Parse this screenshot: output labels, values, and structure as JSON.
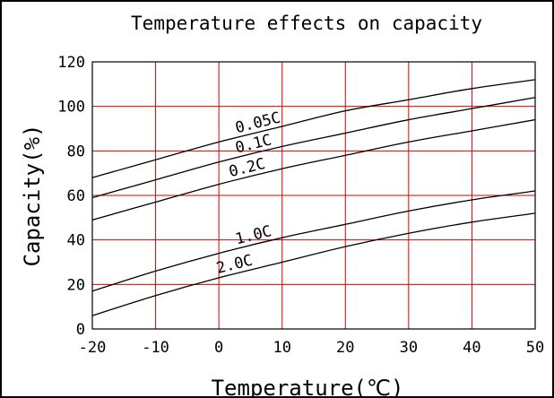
{
  "chart_data": {
    "type": "line",
    "title": "Temperature effects on capacity",
    "xlabel": "Temperature(℃)",
    "ylabel": "Capacity(%)",
    "xlim": [
      -20,
      50
    ],
    "ylim": [
      0,
      120
    ],
    "xticks": [
      -20,
      -10,
      0,
      10,
      20,
      30,
      40,
      50
    ],
    "yticks": [
      0,
      20,
      40,
      60,
      80,
      100,
      120
    ],
    "grid": true,
    "grid_color": "#dd0000",
    "line_color": "#000000",
    "series": [
      {
        "name": "0.05C",
        "x": [
          -20,
          -10,
          0,
          10,
          20,
          30,
          40,
          50
        ],
        "y": [
          68,
          76,
          84,
          91,
          98,
          103,
          108,
          112
        ]
      },
      {
        "name": "0.1C",
        "x": [
          -20,
          -10,
          0,
          10,
          20,
          30,
          40,
          50
        ],
        "y": [
          59,
          67,
          75,
          82,
          88,
          94,
          99,
          104
        ]
      },
      {
        "name": "0.2C",
        "x": [
          -20,
          -10,
          0,
          10,
          20,
          30,
          40,
          50
        ],
        "y": [
          49,
          57,
          65,
          72,
          78,
          84,
          89,
          94
        ]
      },
      {
        "name": "1.0C",
        "x": [
          -20,
          -10,
          0,
          10,
          20,
          30,
          40,
          50
        ],
        "y": [
          17,
          26,
          34,
          41,
          47,
          53,
          58,
          62
        ]
      },
      {
        "name": "2.0C",
        "x": [
          -20,
          -10,
          0,
          10,
          20,
          30,
          40,
          50
        ],
        "y": [
          6,
          15,
          23,
          30,
          37,
          43,
          48,
          52
        ]
      }
    ],
    "labels_at_x": [
      3,
      3,
      2,
      3,
      0
    ]
  }
}
